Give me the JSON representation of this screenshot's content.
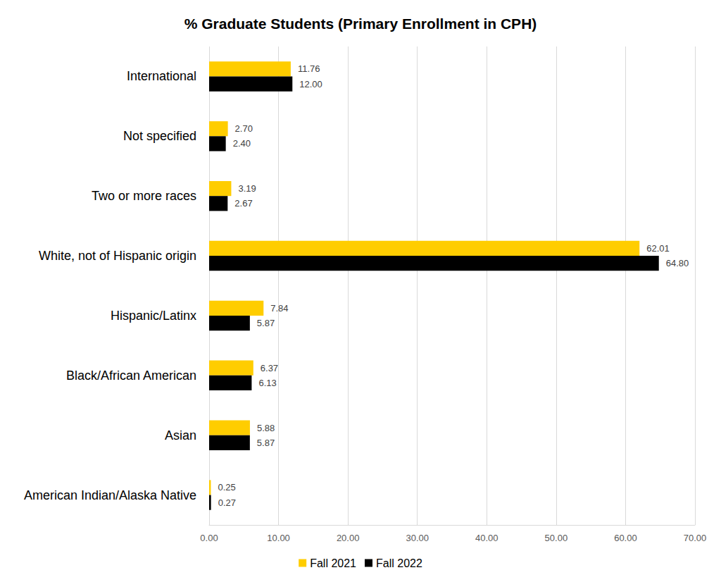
{
  "chart_data": {
    "type": "bar",
    "orientation": "horizontal",
    "title": "% Graduate Students (Primary Enrollment in CPH)",
    "categories": [
      "International",
      "Not specified",
      "Two or more races",
      "White, not of Hispanic origin",
      "Hispanic/Latinx",
      "Black/African American",
      "Asian",
      "American Indian/Alaska Native"
    ],
    "series": [
      {
        "name": "Fall 2021",
        "color": "#FFCD00",
        "values": [
          11.76,
          2.7,
          3.19,
          62.01,
          7.84,
          6.37,
          5.88,
          0.25
        ],
        "value_labels": [
          "11.76",
          "2.70",
          "3.19",
          "62.01",
          "7.84",
          "6.37",
          "5.88",
          "0.25"
        ]
      },
      {
        "name": "Fall 2022",
        "color": "#000000",
        "values": [
          12.0,
          2.4,
          2.67,
          64.8,
          5.87,
          6.13,
          5.87,
          0.27
        ],
        "value_labels": [
          "12.00",
          "2.40",
          "2.67",
          "64.80",
          "5.87",
          "6.13",
          "5.87",
          "0.27"
        ]
      }
    ],
    "xlim": [
      0,
      70
    ],
    "xticks": [
      {
        "value": 0,
        "label": "0.00"
      },
      {
        "value": 10,
        "label": "10.00"
      },
      {
        "value": 20,
        "label": "20.00"
      },
      {
        "value": 30,
        "label": "30.00"
      },
      {
        "value": 40,
        "label": "40.00"
      },
      {
        "value": 50,
        "label": "50.00"
      },
      {
        "value": 60,
        "label": "60.00"
      },
      {
        "value": 70,
        "label": "70.00"
      }
    ],
    "grid": true,
    "legend": "bottom",
    "data_labels": true
  }
}
